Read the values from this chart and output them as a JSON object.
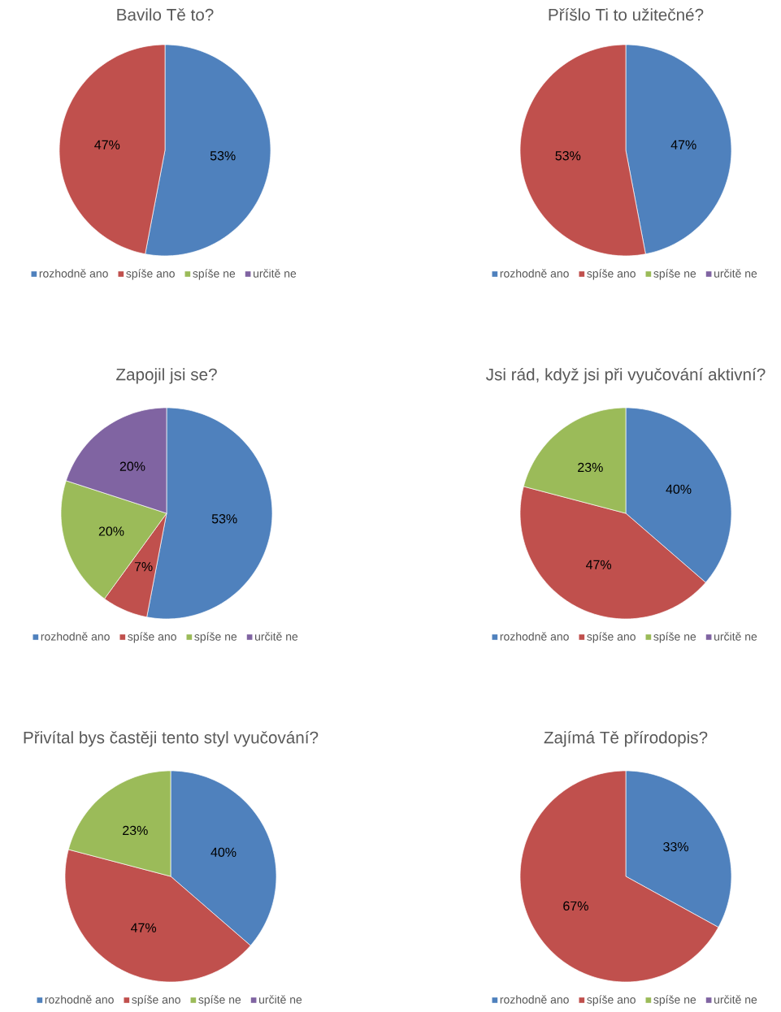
{
  "chart_data": [
    {
      "type": "pie",
      "title": "Bavilo Tě to?",
      "categories": [
        "rozhodně ano",
        "spíše ano",
        "spíše ne",
        "určitě ne"
      ],
      "values": [
        53,
        47,
        0,
        0
      ],
      "value_labels": [
        "53%",
        "47%",
        null,
        null
      ],
      "colors": [
        "#4f81bd",
        "#c0504d",
        "#9bbb59",
        "#8064a2"
      ],
      "legend": "bottom"
    },
    {
      "type": "pie",
      "title": "Příšlo Ti to užitečné?",
      "categories": [
        "rozhodně ano",
        "spíše ano",
        "spíše ne",
        "určitě ne"
      ],
      "values": [
        47,
        53,
        0,
        0
      ],
      "value_labels": [
        "47%",
        "53%",
        null,
        null
      ],
      "colors": [
        "#4f81bd",
        "#c0504d",
        "#9bbb59",
        "#8064a2"
      ],
      "legend": "bottom"
    },
    {
      "type": "pie",
      "title": "Zapojil jsi se?",
      "categories": [
        "rozhodně ano",
        "spíše ano",
        "spíše ne",
        "určitě ne"
      ],
      "values": [
        53,
        7,
        20,
        20
      ],
      "value_labels": [
        "53%",
        "7%",
        "20%",
        "20%"
      ],
      "colors": [
        "#4f81bd",
        "#c0504d",
        "#9bbb59",
        "#8064a2"
      ],
      "legend": "bottom"
    },
    {
      "type": "pie",
      "title": "Jsi rád, když jsi při vyučování aktivní?",
      "categories": [
        "rozhodně ano",
        "spíše ano",
        "spíše ne",
        "určitě ne"
      ],
      "values": [
        40,
        47,
        23,
        0
      ],
      "value_labels": [
        "40%",
        "47%",
        "23%",
        null
      ],
      "colors": [
        "#4f81bd",
        "#c0504d",
        "#9bbb59",
        "#8064a2"
      ],
      "legend": "bottom"
    },
    {
      "type": "pie",
      "title": "Přivítal bys častěji tento styl vyučování?",
      "categories": [
        "rozhodně ano",
        "spíše ano",
        "spíše ne",
        "určitě ne"
      ],
      "values": [
        40,
        47,
        23,
        0
      ],
      "value_labels": [
        "40%",
        "47%",
        "23%",
        null
      ],
      "colors": [
        "#4f81bd",
        "#c0504d",
        "#9bbb59",
        "#8064a2"
      ],
      "legend": "bottom"
    },
    {
      "type": "pie",
      "title": "Zajímá Tě přírodopis?",
      "categories": [
        "rozhodně ano",
        "spíše ano",
        "spíše ne",
        "určitě ne"
      ],
      "values": [
        33,
        67,
        0,
        0
      ],
      "value_labels": [
        "33%",
        "67%",
        null,
        null
      ],
      "colors": [
        "#4f81bd",
        "#c0504d",
        "#9bbb59",
        "#8064a2"
      ],
      "legend": "bottom"
    }
  ]
}
